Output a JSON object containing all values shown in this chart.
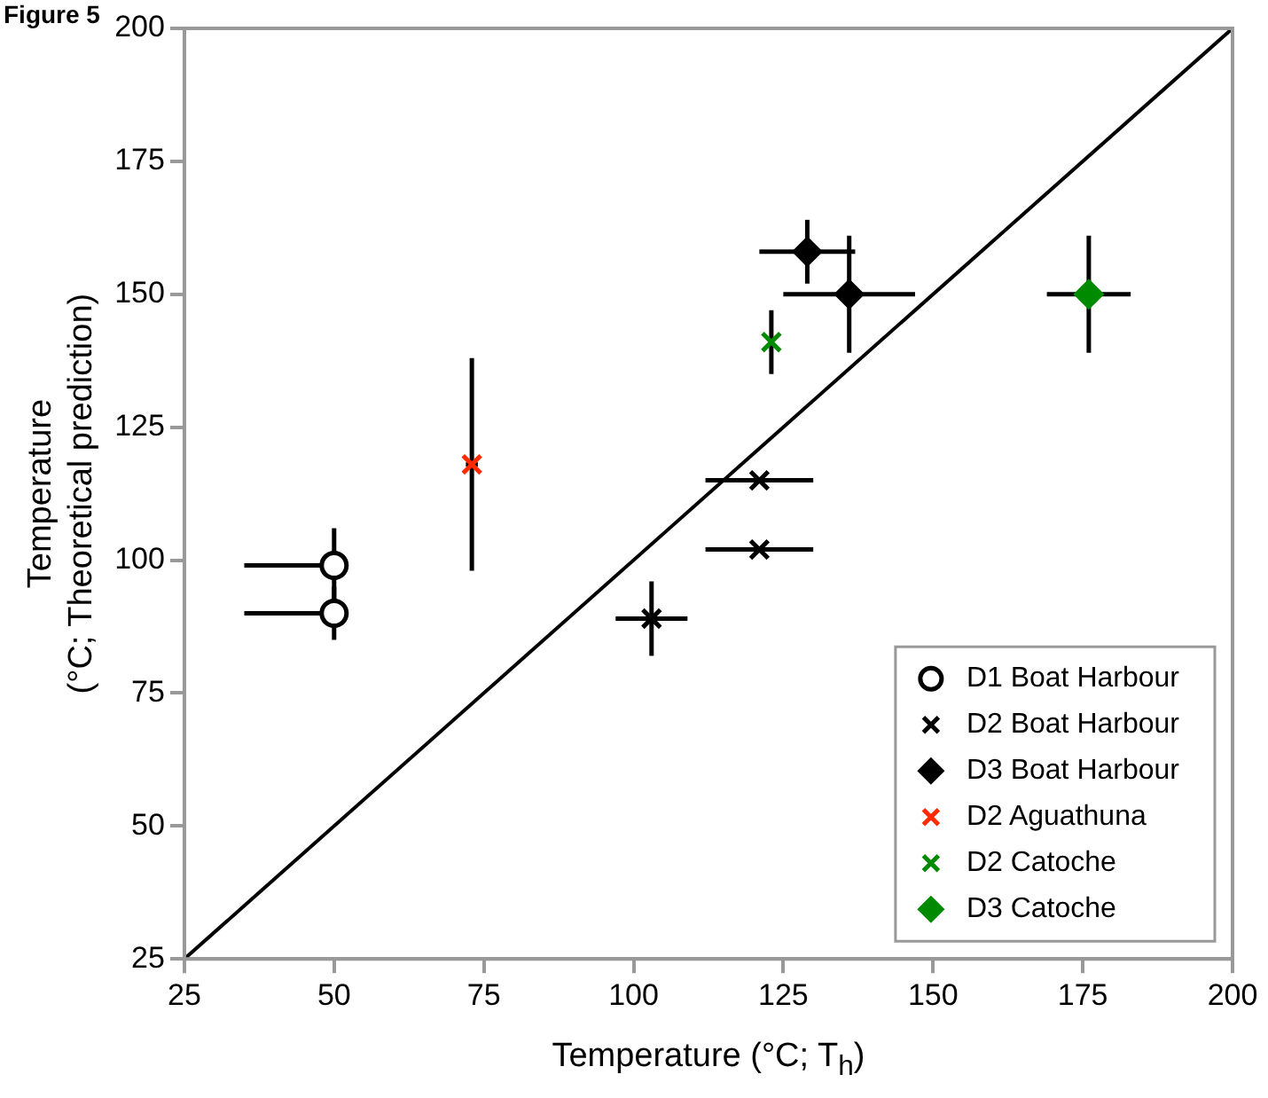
{
  "chart_data": {
    "type": "scatter",
    "title": "Figure 5",
    "xlabel": "Temperature (°C; T$_{h}$)",
    "ylabel": "Temperature\n(°C; Theoretical prediction)",
    "xlim": [
      25,
      200
    ],
    "xticks": [
      25,
      50,
      75,
      100,
      125,
      150,
      175,
      200
    ],
    "ylim": [
      25,
      200
    ],
    "yticks": [
      25,
      50,
      75,
      100,
      125,
      150,
      175,
      200
    ],
    "grid": false,
    "legend": "bottom right",
    "series": [
      {
        "name": "D1 Boat Harbour",
        "color": "#000000",
        "marker": "circle",
        "x": [
          50,
          50
        ],
        "values": [
          99,
          90
        ],
        "errors": [
          7,
          5
        ],
        "xerrors": [
          [
            35,
            50
          ],
          [
            35,
            50
          ]
        ]
      },
      {
        "name": "D2 Boat Harbour",
        "color": "#000000",
        "marker": "cross",
        "x": [
          103,
          121,
          121
        ],
        "values": [
          89,
          115,
          102
        ],
        "errors": [
          7,
          null,
          null
        ],
        "xerrors": [
          6,
          9,
          9
        ]
      },
      {
        "name": "D3 Boat Harbour",
        "color": "#000000",
        "marker": "diamond",
        "x": [
          129,
          136
        ],
        "values": [
          158,
          150
        ],
        "errors": [
          6,
          11
        ],
        "xerrors": [
          8,
          11
        ]
      },
      {
        "name": "D2 Aguathuna",
        "color": "#ff2a00",
        "marker": "cross",
        "x": [
          73
        ],
        "values": [
          118
        ],
        "errors": [
          20
        ],
        "xerrors": [
          1
        ]
      },
      {
        "name": "D2 Catoche",
        "color": "#008a00",
        "marker": "cross",
        "x": [
          123
        ],
        "values": [
          141
        ],
        "errors": [
          6
        ]
      },
      {
        "name": "D3 Catoche",
        "color": "#008a00",
        "marker": "diamond",
        "x": [
          176
        ],
        "values": [
          150
        ],
        "errors": [
          11
        ],
        "xerrors": [
          7
        ]
      },
      {
        "type": "line",
        "color": "#000000",
        "marker": "none",
        "x": [
          25,
          200
        ],
        "values": [
          25,
          200
        ]
      }
    ]
  }
}
